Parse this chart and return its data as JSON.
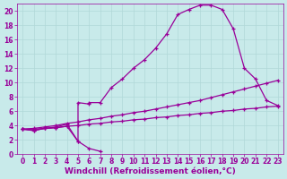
{
  "background_color": "#c8eaea",
  "grid_color": "#b0d8d8",
  "line_color": "#990099",
  "xlabel": "Windchill (Refroidissement éolien,°C)",
  "xlabel_fontsize": 6.5,
  "tick_fontsize": 5.5,
  "xlim": [
    -0.5,
    23.5
  ],
  "ylim": [
    0,
    21
  ],
  "xticks": [
    0,
    1,
    2,
    3,
    4,
    5,
    6,
    7,
    8,
    9,
    10,
    11,
    12,
    13,
    14,
    15,
    16,
    17,
    18,
    19,
    20,
    21,
    22,
    23
  ],
  "yticks": [
    0,
    2,
    4,
    6,
    8,
    10,
    12,
    14,
    16,
    18,
    20
  ],
  "curve1_x": [
    0,
    1,
    2,
    3,
    4,
    5,
    5,
    6,
    6,
    7,
    8,
    9,
    10,
    11,
    12,
    13,
    14,
    15,
    16,
    17,
    18,
    19,
    20,
    21,
    22,
    23
  ],
  "curve1_y": [
    3.5,
    3.3,
    3.6,
    3.7,
    3.9,
    1.8,
    7.2,
    7.0,
    7.2,
    7.2,
    9.3,
    10.5,
    12.0,
    13.2,
    14.8,
    16.8,
    19.5,
    20.2,
    20.8,
    20.8,
    20.2,
    17.5,
    12.0,
    10.5,
    7.5,
    6.8
  ],
  "curve2_x": [
    0,
    1,
    2,
    3,
    4,
    5,
    6,
    7
  ],
  "curve2_y": [
    3.5,
    3.3,
    3.6,
    3.8,
    4.2,
    1.8,
    0.8,
    0.4
  ],
  "curve3_x": [
    0,
    1,
    2,
    3,
    4,
    5,
    6,
    7,
    8,
    9,
    10,
    11,
    12,
    13,
    14,
    15,
    16,
    17,
    18,
    19,
    20,
    21,
    22,
    23
  ],
  "curve3_y": [
    3.5,
    3.6,
    3.8,
    4.0,
    4.3,
    4.5,
    4.8,
    5.0,
    5.3,
    5.5,
    5.8,
    6.0,
    6.3,
    6.6,
    6.9,
    7.2,
    7.5,
    7.9,
    8.3,
    8.7,
    9.1,
    9.5,
    9.9,
    10.3
  ],
  "curve4_x": [
    0,
    1,
    2,
    3,
    4,
    5,
    6,
    7,
    8,
    9,
    10,
    11,
    12,
    13,
    14,
    15,
    16,
    17,
    18,
    19,
    20,
    21,
    22,
    23
  ],
  "curve4_y": [
    3.5,
    3.5,
    3.6,
    3.7,
    3.9,
    4.0,
    4.2,
    4.3,
    4.5,
    4.6,
    4.8,
    4.9,
    5.1,
    5.2,
    5.4,
    5.5,
    5.7,
    5.8,
    6.0,
    6.1,
    6.3,
    6.4,
    6.6,
    6.7
  ]
}
